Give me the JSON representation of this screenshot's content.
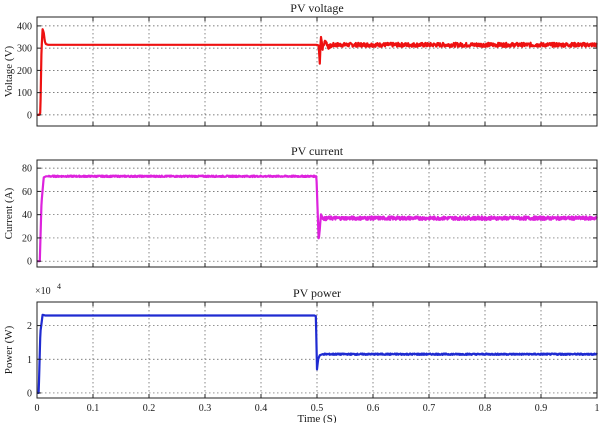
{
  "chart_data": [
    {
      "type": "line",
      "title": "PV voltage",
      "xlabel": "",
      "ylabel": "Voltage (V)",
      "xlim": [
        0,
        1
      ],
      "ylim": [
        -50,
        440
      ],
      "x_ticks": [
        0,
        0.1,
        0.2,
        0.3,
        0.4,
        0.5,
        0.6,
        0.7,
        0.8,
        0.9,
        1
      ],
      "x_tick_labels": [
        "",
        "",
        "",
        "",
        "",
        "",
        "",
        "",
        "",
        "",
        ""
      ],
      "y_ticks": [
        0,
        100,
        200,
        300,
        400
      ],
      "y_tick_labels": [
        "0",
        "100",
        "200",
        "300",
        "400"
      ],
      "exponent_label": "",
      "grid": true,
      "series": [
        {
          "name": "",
          "color": "#ee1111",
          "x": [
            0,
            0.004,
            0.006,
            0.008,
            0.01,
            0.012,
            0.014,
            0.016,
            0.02,
            0.03,
            0.1,
            0.2,
            0.3,
            0.4,
            0.499,
            0.503,
            0.505,
            0.507,
            0.51,
            0.515,
            0.52,
            0.53,
            0.6,
            0.7,
            0.8,
            0.9,
            1
          ],
          "y": [
            0,
            0,
            10,
            290,
            385,
            370,
            330,
            318,
            315,
            315,
            315,
            315,
            315,
            315,
            315,
            312,
            230,
            360,
            300,
            335,
            305,
            315,
            315,
            315,
            315,
            315,
            315
          ],
          "noise": 0,
          "noise_after": 0.505,
          "noise_after_amp": 9
        }
      ]
    },
    {
      "type": "line",
      "title": "PV current",
      "xlabel": "",
      "ylabel": "Current (A)",
      "xlim": [
        0,
        1
      ],
      "ylim": [
        -5,
        87
      ],
      "x_ticks": [
        0,
        0.1,
        0.2,
        0.3,
        0.4,
        0.5,
        0.6,
        0.7,
        0.8,
        0.9,
        1
      ],
      "x_tick_labels": [
        "",
        "",
        "",
        "",
        "",
        "",
        "",
        "",
        "",
        "",
        ""
      ],
      "y_ticks": [
        0,
        20,
        40,
        60,
        80
      ],
      "y_tick_labels": [
        "0",
        "20",
        "40",
        "60",
        "80"
      ],
      "exponent_label": "",
      "grid": true,
      "series": [
        {
          "name": "",
          "color": "#dd22dd",
          "x": [
            0,
            0.005,
            0.008,
            0.012,
            0.016,
            0.02,
            0.04,
            0.1,
            0.2,
            0.3,
            0.4,
            0.495,
            0.499,
            0.501,
            0.503,
            0.505,
            0.507,
            0.51,
            0.515,
            0.52,
            0.53,
            0.6,
            0.7,
            0.8,
            0.9,
            1
          ],
          "y": [
            0,
            0,
            50,
            72,
            73,
            73,
            73,
            73,
            73,
            73,
            73,
            73,
            73,
            45,
            18,
            28,
            40,
            37,
            36.5,
            37,
            37,
            37,
            37,
            37,
            37,
            37
          ],
          "noise": 0.6,
          "noise_after": 0.51,
          "noise_after_amp": 1.5
        }
      ]
    },
    {
      "type": "line",
      "title": "PV power",
      "xlabel": "Time (S)",
      "ylabel": "Power (W)",
      "xlim": [
        0,
        1
      ],
      "ylim": [
        -0.15,
        2.7
      ],
      "x_ticks": [
        0,
        0.1,
        0.2,
        0.3,
        0.4,
        0.5,
        0.6,
        0.7,
        0.8,
        0.9,
        1
      ],
      "x_tick_labels": [
        "0",
        "0.1",
        "0.2",
        "0.3",
        "0.4",
        "0.5",
        "0.6",
        "0.7",
        "0.8",
        "0.9",
        "1"
      ],
      "y_ticks": [
        0,
        1,
        2
      ],
      "y_tick_labels": [
        "0",
        "1",
        "2"
      ],
      "exponent_label": "×10",
      "exponent_power": "4",
      "grid": true,
      "series": [
        {
          "name": "",
          "color": "#1f2bd1",
          "x": [
            0,
            0.003,
            0.006,
            0.01,
            0.015,
            0.02,
            0.1,
            0.2,
            0.3,
            0.4,
            0.49,
            0.495,
            0.498,
            0.5,
            0.502,
            0.505,
            0.51,
            0.52,
            0.6,
            0.7,
            0.8,
            0.9,
            1
          ],
          "y": [
            0,
            0,
            1.8,
            2.32,
            2.3,
            2.3,
            2.3,
            2.3,
            2.3,
            2.3,
            2.3,
            2.3,
            2.28,
            0.7,
            1.0,
            1.12,
            1.15,
            1.15,
            1.15,
            1.15,
            1.15,
            1.15,
            1.15
          ],
          "noise": 0,
          "noise_after": 0.51,
          "noise_after_amp": 0.02
        }
      ]
    }
  ]
}
